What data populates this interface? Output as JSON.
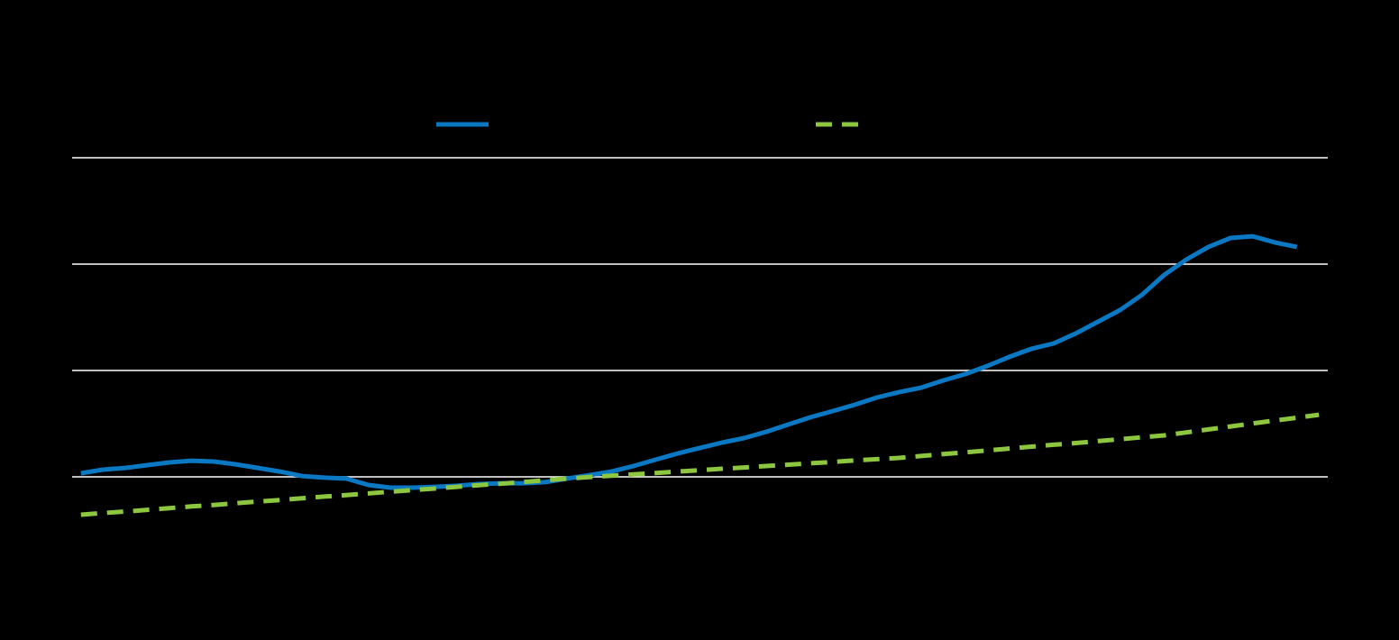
{
  "chart_data": {
    "type": "line",
    "x": [
      0,
      1,
      2,
      3,
      4,
      5,
      6,
      7,
      8,
      9,
      10,
      11,
      12,
      13,
      14,
      15,
      16,
      17,
      18,
      19,
      20,
      21,
      22,
      23,
      24,
      25,
      26,
      27,
      28,
      29,
      30,
      31,
      32,
      33,
      34,
      35,
      36,
      37,
      38,
      39,
      40,
      41,
      42,
      43,
      44,
      45,
      46,
      47,
      48,
      49,
      50,
      51,
      52,
      53,
      54,
      55,
      56
    ],
    "xlim": [
      -0.4,
      56.4
    ],
    "ylim": [
      50,
      250
    ],
    "yticks": [
      100,
      150,
      200,
      250
    ],
    "grid": true,
    "legend": "top",
    "series": [
      {
        "color": "#0a78c2",
        "dashed": false,
        "values": [
          101.7,
          103.4,
          104.2,
          105.5,
          106.8,
          107.6,
          107.2,
          105.9,
          104.2,
          102.5,
          100.4,
          99.6,
          99.2,
          96.2,
          94.9,
          94.9,
          95.3,
          95.8,
          96.6,
          97.0,
          97.0,
          97.5,
          99.2,
          100.8,
          102.5,
          105.1,
          108.1,
          111.0,
          113.6,
          116.1,
          118.2,
          121.2,
          124.6,
          128.0,
          130.9,
          133.9,
          137.3,
          139.8,
          141.9,
          145.3,
          148.3,
          152.1,
          156.4,
          160.2,
          162.7,
          167.4,
          172.9,
          178.4,
          185.6,
          194.9,
          202.1,
          208.1,
          212.3,
          213.1,
          210.2,
          208.1,
          null
        ]
      },
      {
        "color": "#8dc63f",
        "dashed": true,
        "values": [
          82.2,
          83.0,
          83.7,
          84.5,
          85.3,
          86.1,
          86.8,
          87.6,
          88.4,
          89.1,
          89.9,
          90.7,
          91.4,
          92.2,
          93.0,
          93.8,
          94.5,
          95.3,
          96.1,
          96.8,
          97.6,
          98.4,
          99.2,
          99.9,
          100.5,
          101.2,
          101.8,
          102.5,
          103.1,
          103.8,
          104.4,
          105.1,
          105.7,
          106.4,
          107.0,
          107.7,
          108.3,
          108.9,
          109.8,
          110.7,
          111.5,
          112.4,
          113.3,
          114.2,
          115.1,
          115.9,
          116.8,
          117.7,
          118.6,
          119.5,
          120.9,
          122.3,
          123.7,
          125.1,
          126.5,
          127.8,
          129.2
        ]
      }
    ]
  }
}
